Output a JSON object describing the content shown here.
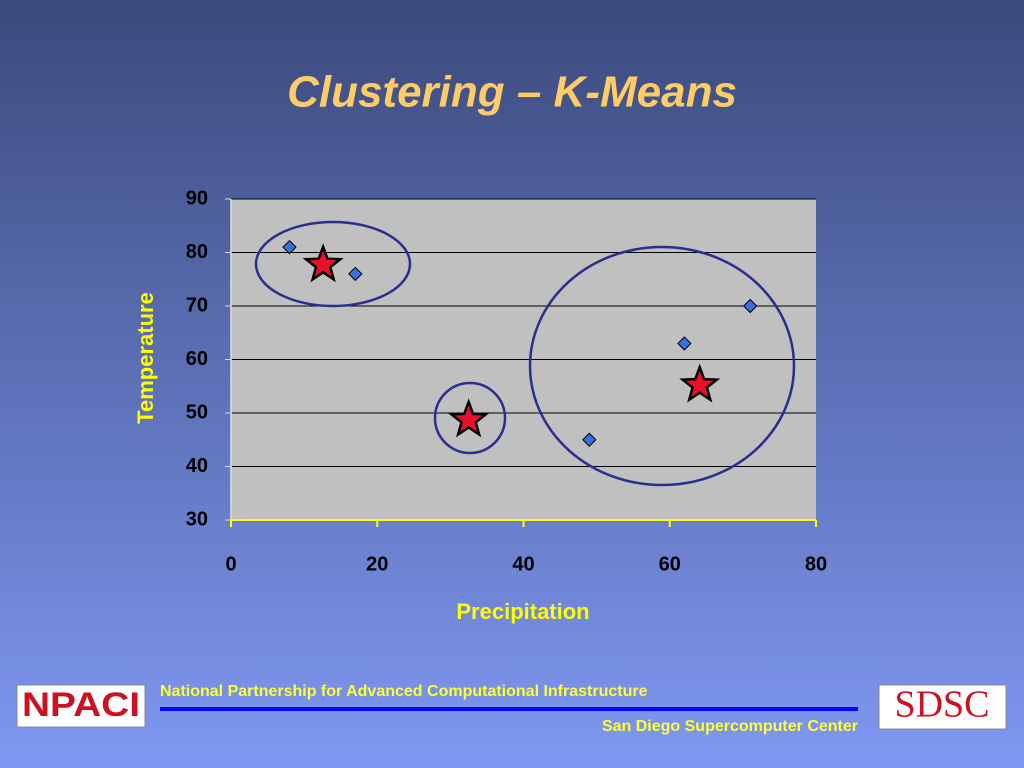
{
  "chart_data": {
    "type": "scatter",
    "title": "Clustering – K-Means",
    "x_label": "Precipitation",
    "y_label": "Temperature",
    "xlim": [
      0,
      80
    ],
    "xticks": [
      0,
      20,
      40,
      60,
      80
    ],
    "ylim": [
      30,
      90
    ],
    "yticks": [
      30,
      40,
      50,
      60,
      70,
      80,
      90
    ],
    "grid": true,
    "series": [
      {
        "marker": "diamond",
        "color": "#3b6fe0",
        "x": [
          8,
          17,
          49,
          62,
          71
        ],
        "values": [
          81,
          76,
          45,
          63,
          70
        ]
      },
      {
        "marker": "star",
        "color": "#e8102a",
        "x": [
          12.6,
          32.5,
          64.1
        ],
        "values": [
          77.7,
          48.7,
          55.2
        ]
      }
    ]
  },
  "footer": {
    "logo_left": "NPACI",
    "line1": "National Partnership for Advanced Computational Infrastructure",
    "line2": "San Diego Supercomputer Center",
    "logo_right": "SDSC"
  }
}
